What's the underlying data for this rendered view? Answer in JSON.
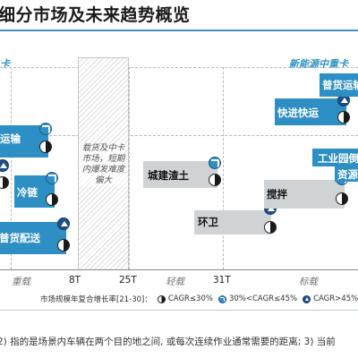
{
  "title": "细分市场及未来趋势概览",
  "segments": {
    "left": "卡",
    "right": "新能源中重卡"
  },
  "hatch_note": "载货及中卡市场，短期内爆发难度偏大",
  "boxes": {
    "yunshu": "运输",
    "lenglian": "冷链",
    "puhuo_peisong": "普货配送",
    "chengjian_zhatu": "城建渣土",
    "huanwei": "环卫",
    "jiaoban": "搅拌",
    "kuaijin_kuaichu": "快进快运",
    "puhuo_yunshu": "普货运输",
    "gongye_yuanqu": "工业园倒",
    "ziyuan": "资源"
  },
  "axis": {
    "ticks": [
      "8T",
      "25T",
      "31T"
    ],
    "zones": [
      "重载",
      "轻载",
      "标载"
    ]
  },
  "legend": {
    "prefix": "市场规模年复合增长率[21-30]：",
    "items": [
      {
        "icon": "pie-icon",
        "label": "CAGR≤30%"
      },
      {
        "icon": "arrow-icon",
        "label": "30%<CAGR≤45%"
      },
      {
        "icon": "up-icon",
        "label": "CAGR>45%"
      }
    ]
  },
  "footnote": "2) 指的是场景内车辆在两个目的地之间, 或每次连续作业通常需要的距离; 3) 当前",
  "colors": {
    "accent": "#2e8fc4",
    "grey_box": "#cfd3d6",
    "title_rule": "#3d8fb8"
  }
}
